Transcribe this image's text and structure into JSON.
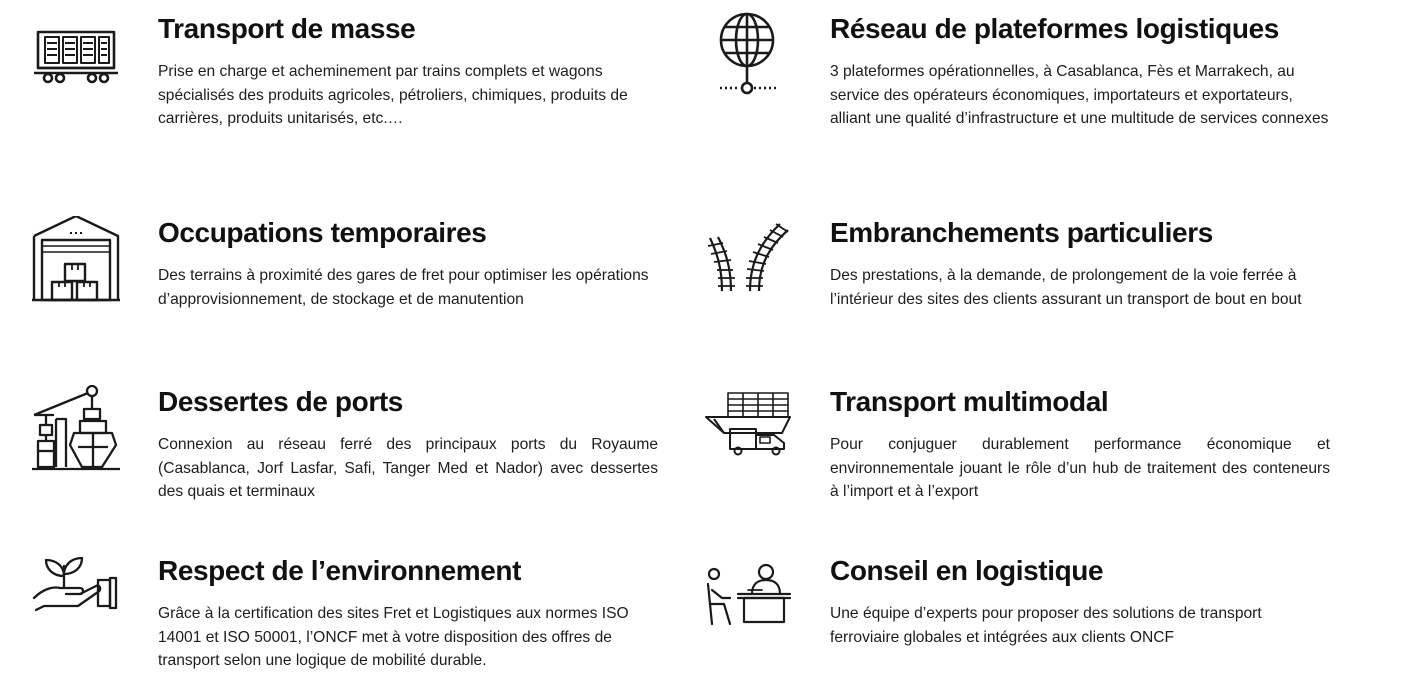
{
  "services": [
    {
      "id": "transport-masse",
      "icon": "freight-wagon-icon",
      "title": "Transport de masse",
      "description": "Prise en charge et acheminement par trains complets et wagons spécialisés des produits agricoles, pétroliers, chimiques, produits de carrières, produits unitarisés, etc.…"
    },
    {
      "id": "reseau-plateformes",
      "icon": "globe-network-icon",
      "title": "Réseau de plateformes logistiques",
      "description": "3 plateformes opérationnelles, à Casablanca, Fès et Marrakech, au service des opérateurs économiques, importateurs et exportateurs, alliant une qualité d’infrastructure et une multitude de services connexes"
    },
    {
      "id": "occupations-temporaires",
      "icon": "warehouse-icon",
      "title": "Occupations temporaires",
      "description": "Des terrains à proximité des gares de fret pour optimiser les opérations d’approvisionnement, de stockage et de manutention"
    },
    {
      "id": "embranchements",
      "icon": "railway-junction-icon",
      "title": "Embranchements particuliers",
      "description": "Des prestations, à la demande, de prolongement de la voie ferrée à l’intérieur des sites des clients assurant un transport de bout en bout"
    },
    {
      "id": "dessertes-ports",
      "icon": "port-crane-ship-icon",
      "title": "Dessertes de ports",
      "description": "Connexion au réseau ferré des principaux ports du Royaume (Casablanca, Jorf Lasfar, Safi, Tanger Med et Nador) avec dessertes des quais et terminaux"
    },
    {
      "id": "transport-multimodal",
      "icon": "multimodal-ship-truck-icon",
      "title": "Transport multimodal",
      "description": "Pour conjuguer durablement performance économique et environnementale jouant le rôle d’un hub de traitement des conteneurs à l’import et à l’export"
    },
    {
      "id": "environnement",
      "icon": "hand-plant-icon",
      "title": "Respect de l’environnement",
      "description": "Grâce à la certification des sites Fret et Logistiques aux normes ISO 14001 et ISO 50001, l’ONCF met à votre disposition des offres de transport selon une logique de mobilité durable."
    },
    {
      "id": "conseil-logistique",
      "icon": "consultant-desk-icon",
      "title": "Conseil en logistique",
      "description": "Une équipe d’experts pour proposer des solutions de transport ferroviaire globales et intégrées aux clients ONCF"
    }
  ]
}
